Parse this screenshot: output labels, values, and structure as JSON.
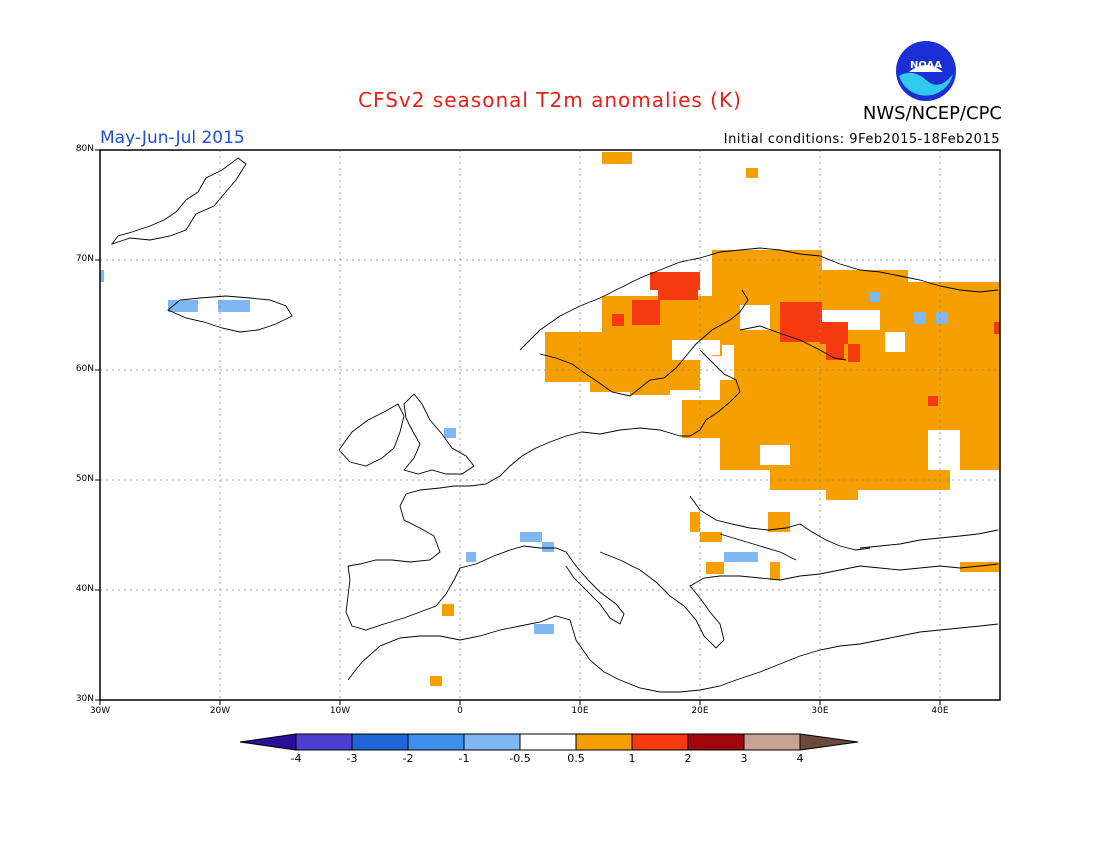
{
  "header": {
    "title": "CFSv2 seasonal T2m anomalies (K)",
    "period": "May-Jun-Jul 2015",
    "initial_conditions": "Initial conditions: 9Feb2015-18Feb2015",
    "agency": "NWS/NCEP/CPC",
    "logo_text": "NOAA"
  },
  "map": {
    "lat_labels": [
      "80N",
      "70N",
      "60N",
      "50N",
      "40N",
      "30N"
    ],
    "lon_labels": [
      "30W",
      "20W",
      "10W",
      "0",
      "10E",
      "20E",
      "30E",
      "40E"
    ],
    "lat_range": [
      30,
      80
    ],
    "lon_range": [
      -30,
      45
    ],
    "grid": "dotted"
  },
  "colorbar": {
    "labels": [
      "-4",
      "-3",
      "-2",
      "-1",
      "-0.5",
      "0.5",
      "1",
      "2",
      "3",
      "4"
    ],
    "colors": [
      "#2a0f9a",
      "#4b3fcf",
      "#1f66d8",
      "#3f8ff0",
      "#7fb7f2",
      "#ffffff",
      "#f5a000",
      "#f53a10",
      "#a0060b",
      "#c8a293",
      "#6b4a3c"
    ]
  }
}
